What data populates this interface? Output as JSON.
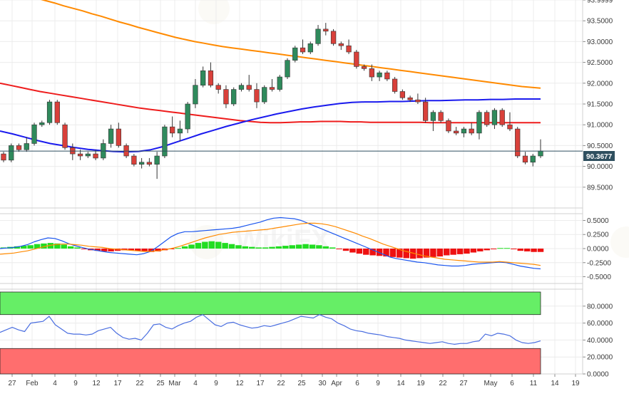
{
  "chart_data": [
    {
      "type": "candlestick",
      "panel": "price",
      "x_ticks": [
        "27",
        "Feb",
        "4",
        "9",
        "12",
        "17",
        "22",
        "25",
        "Mar",
        "4",
        "9",
        "12",
        "17",
        "22",
        "25",
        "30",
        "Apr",
        "6",
        "9",
        "14",
        "19",
        "22",
        "27",
        "May",
        "6",
        "11",
        "14",
        "19"
      ],
      "y_ticks": [
        "89.5000",
        "90.0000",
        "90.5000",
        "91.0000",
        "91.5000",
        "92.0000",
        "92.5000",
        "93.0000",
        "93.5000",
        "93.9999"
      ],
      "last_price_label": "90.3677",
      "ylim": [
        89.0,
        94.0
      ],
      "candles": [
        [
          90.3,
          90.35,
          90.1,
          90.15
        ],
        [
          90.15,
          90.55,
          90.1,
          90.5
        ],
        [
          90.5,
          90.55,
          90.35,
          90.4
        ],
        [
          90.4,
          90.7,
          90.35,
          90.55
        ],
        [
          90.55,
          91.05,
          90.5,
          91.0
        ],
        [
          91.0,
          91.1,
          90.95,
          91.05
        ],
        [
          91.05,
          91.6,
          91.0,
          91.55
        ],
        [
          91.55,
          91.6,
          91.0,
          91.05
        ],
        [
          91.0,
          91.05,
          90.4,
          90.45
        ],
        [
          90.45,
          90.55,
          90.15,
          90.3
        ],
        [
          90.3,
          90.4,
          90.15,
          90.25
        ],
        [
          90.25,
          90.35,
          90.2,
          90.3
        ],
        [
          90.3,
          90.4,
          90.15,
          90.2
        ],
        [
          90.2,
          90.65,
          90.15,
          90.55
        ],
        [
          90.55,
          91.0,
          90.45,
          90.9
        ],
        [
          90.9,
          91.05,
          90.45,
          90.5
        ],
        [
          90.5,
          90.55,
          90.2,
          90.25
        ],
        [
          90.25,
          90.3,
          90.0,
          90.05
        ],
        [
          90.05,
          90.2,
          89.95,
          90.1
        ],
        [
          90.1,
          90.2,
          90.0,
          90.05
        ],
        [
          90.05,
          90.35,
          89.7,
          90.25
        ],
        [
          90.25,
          91.0,
          90.2,
          90.95
        ],
        [
          90.95,
          91.2,
          90.7,
          90.8
        ],
        [
          90.8,
          91.1,
          90.6,
          90.9
        ],
        [
          90.9,
          91.55,
          90.8,
          91.5
        ],
        [
          91.5,
          92.1,
          91.4,
          91.95
        ],
        [
          91.95,
          92.4,
          91.9,
          92.3
        ],
        [
          92.3,
          92.5,
          91.9,
          91.95
        ],
        [
          91.95,
          92.0,
          91.75,
          91.85
        ],
        [
          91.85,
          91.95,
          91.4,
          91.5
        ],
        [
          91.5,
          91.9,
          91.45,
          91.85
        ],
        [
          91.85,
          92.0,
          91.8,
          91.95
        ],
        [
          91.95,
          92.2,
          91.8,
          91.85
        ],
        [
          91.85,
          92.0,
          91.4,
          91.55
        ],
        [
          91.55,
          91.95,
          91.5,
          91.9
        ],
        [
          91.9,
          92.1,
          91.8,
          91.85
        ],
        [
          91.85,
          92.2,
          91.8,
          92.15
        ],
        [
          92.15,
          92.6,
          92.1,
          92.55
        ],
        [
          92.55,
          92.9,
          92.5,
          92.85
        ],
        [
          92.85,
          93.05,
          92.7,
          92.75
        ],
        [
          92.75,
          93.0,
          92.7,
          92.95
        ],
        [
          92.95,
          93.4,
          92.9,
          93.3
        ],
        [
          93.3,
          93.45,
          93.15,
          93.25
        ],
        [
          93.25,
          93.3,
          92.9,
          92.95
        ],
        [
          92.95,
          93.0,
          92.8,
          92.9
        ],
        [
          92.9,
          93.05,
          92.7,
          92.75
        ],
        [
          92.75,
          92.8,
          92.35,
          92.4
        ],
        [
          92.4,
          92.45,
          92.3,
          92.35
        ],
        [
          92.35,
          92.45,
          92.05,
          92.15
        ],
        [
          92.15,
          92.3,
          92.05,
          92.25
        ],
        [
          92.25,
          92.3,
          92.05,
          92.1
        ],
        [
          92.1,
          92.15,
          91.75,
          91.8
        ],
        [
          91.8,
          91.85,
          91.6,
          91.65
        ],
        [
          91.65,
          91.7,
          91.55,
          91.6
        ],
        [
          91.6,
          91.75,
          91.5,
          91.55
        ],
        [
          91.55,
          91.65,
          91.05,
          91.1
        ],
        [
          91.1,
          91.35,
          90.85,
          91.3
        ],
        [
          91.3,
          91.35,
          91.05,
          91.1
        ],
        [
          91.1,
          91.15,
          90.8,
          90.85
        ],
        [
          90.85,
          90.95,
          90.75,
          90.8
        ],
        [
          90.8,
          90.95,
          90.7,
          90.9
        ],
        [
          90.9,
          91.05,
          90.75,
          90.8
        ],
        [
          90.8,
          91.35,
          90.65,
          91.3
        ],
        [
          91.3,
          91.35,
          90.95,
          91.0
        ],
        [
          91.0,
          91.4,
          90.9,
          91.35
        ],
        [
          91.35,
          91.4,
          90.95,
          91.0
        ],
        [
          91.0,
          91.3,
          90.85,
          90.9
        ],
        [
          90.9,
          90.95,
          90.2,
          90.25
        ],
        [
          90.25,
          90.35,
          90.05,
          90.1
        ],
        [
          90.1,
          90.3,
          90.0,
          90.25
        ],
        [
          90.25,
          90.65,
          90.2,
          90.37
        ]
      ],
      "series": [
        {
          "color": "#ff8a00",
          "values": [
            94.05,
            93.99,
            93.93,
            93.86,
            93.8,
            93.74,
            93.67,
            93.61,
            93.54,
            93.47,
            93.41,
            93.34,
            93.28,
            93.22,
            93.16,
            93.1,
            93.05,
            93.0,
            92.96,
            92.92,
            92.88,
            92.85,
            92.82,
            92.79,
            92.76,
            92.73,
            92.7,
            92.67,
            92.64,
            92.61,
            92.58,
            92.55,
            92.52,
            92.49,
            92.46,
            92.43,
            92.4,
            92.37,
            92.34,
            92.31,
            92.28,
            92.25,
            92.22,
            92.19,
            92.16,
            92.13,
            92.1,
            92.07,
            92.04,
            92.01,
            91.98,
            91.95,
            91.92,
            91.9,
            91.88
          ]
        },
        {
          "color": "#ee1c1c",
          "values": [
            92.0,
            91.95,
            91.9,
            91.85,
            91.8,
            91.76,
            91.72,
            91.68,
            91.64,
            91.6,
            91.56,
            91.52,
            91.48,
            91.44,
            91.4,
            91.37,
            91.34,
            91.31,
            91.28,
            91.25,
            91.22,
            91.19,
            91.16,
            91.13,
            91.1,
            91.08,
            91.06,
            91.05,
            91.05,
            91.06,
            91.07,
            91.07,
            91.08,
            91.08,
            91.08,
            91.07,
            91.07,
            91.06,
            91.06,
            91.06,
            91.06,
            91.06,
            91.06,
            91.05,
            91.05,
            91.05,
            91.05,
            91.05,
            91.05,
            91.05,
            91.05,
            91.05,
            91.05,
            91.05,
            91.05
          ]
        },
        {
          "color": "#1a1aee",
          "values": [
            90.85,
            90.78,
            90.7,
            90.62,
            90.55,
            90.5,
            90.45,
            90.41,
            90.38,
            90.36,
            90.35,
            90.36,
            90.4,
            90.48,
            90.58,
            90.68,
            90.78,
            90.87,
            90.96,
            91.04,
            91.12,
            91.19,
            91.26,
            91.32,
            91.38,
            91.43,
            91.47,
            91.51,
            91.54,
            91.55,
            91.55,
            91.56,
            91.56,
            91.57,
            91.58,
            91.58,
            91.59,
            91.6,
            91.6,
            91.61,
            91.61,
            91.62,
            91.62,
            91.62
          ]
        }
      ]
    },
    {
      "type": "macd",
      "panel": "macd",
      "y_ticks": [
        "0.5000",
        "0.2500",
        "0.0000",
        "-0.2500",
        "-0.5000"
      ],
      "ylim": [
        -0.62,
        0.62
      ],
      "histogram": [
        0.02,
        0.03,
        0.04,
        0.05,
        0.06,
        0.08,
        0.09,
        0.1,
        0.09,
        0.07,
        0.04,
        0.02,
        -0.01,
        -0.03,
        -0.04,
        -0.05,
        -0.05,
        -0.04,
        -0.03,
        -0.03,
        -0.04,
        -0.05,
        -0.06,
        -0.05,
        -0.03,
        -0.01,
        0.01,
        0.04,
        0.07,
        0.1,
        0.12,
        0.13,
        0.12,
        0.1,
        0.08,
        0.06,
        0.04,
        0.03,
        0.02,
        0.02,
        0.03,
        0.04,
        0.05,
        0.06,
        0.07,
        0.08,
        0.07,
        0.06,
        0.04,
        0.02,
        -0.01,
        -0.04,
        -0.07,
        -0.09,
        -0.11,
        -0.12,
        -0.13,
        -0.14,
        -0.15,
        -0.16,
        -0.17,
        -0.18,
        -0.17,
        -0.16,
        -0.15,
        -0.14,
        -0.12,
        -0.11,
        -0.1,
        -0.09,
        -0.07,
        -0.05,
        -0.03,
        -0.01,
        0.01,
        0.01,
        -0.01,
        -0.04,
        -0.05,
        -0.06,
        -0.06
      ],
      "series": [
        {
          "color": "#1a55ee",
          "values": [
            0.0,
            0.01,
            0.02,
            0.04,
            0.07,
            0.12,
            0.16,
            0.19,
            0.18,
            0.14,
            0.09,
            0.05,
            0.02,
            -0.01,
            -0.03,
            -0.05,
            -0.07,
            -0.08,
            -0.09,
            -0.1,
            -0.11,
            -0.09,
            -0.05,
            0.03,
            0.12,
            0.21,
            0.27,
            0.3,
            0.3,
            0.31,
            0.32,
            0.33,
            0.34,
            0.35,
            0.36,
            0.38,
            0.41,
            0.44,
            0.47,
            0.51,
            0.54,
            0.55,
            0.54,
            0.53,
            0.5,
            0.45,
            0.4,
            0.35,
            0.3,
            0.25,
            0.2,
            0.15,
            0.1,
            0.05,
            0.0,
            -0.05,
            -0.1,
            -0.15,
            -0.18,
            -0.2,
            -0.22,
            -0.24,
            -0.25,
            -0.27,
            -0.29,
            -0.3,
            -0.31,
            -0.31,
            -0.3,
            -0.28,
            -0.27,
            -0.26,
            -0.25,
            -0.24,
            -0.25,
            -0.28,
            -0.31,
            -0.33,
            -0.35,
            -0.36
          ]
        },
        {
          "color": "#ff8a00",
          "values": [
            -0.1,
            -0.09,
            -0.08,
            -0.06,
            -0.04,
            -0.01,
            0.02,
            0.05,
            0.07,
            0.08,
            0.08,
            0.07,
            0.06,
            0.04,
            0.03,
            0.02,
            0.0,
            -0.01,
            -0.02,
            -0.03,
            -0.04,
            -0.05,
            -0.05,
            -0.04,
            -0.02,
            0.0,
            0.03,
            0.07,
            0.11,
            0.15,
            0.19,
            0.22,
            0.25,
            0.27,
            0.29,
            0.3,
            0.31,
            0.32,
            0.33,
            0.34,
            0.36,
            0.38,
            0.4,
            0.42,
            0.44,
            0.45,
            0.45,
            0.44,
            0.42,
            0.39,
            0.35,
            0.31,
            0.27,
            0.22,
            0.18,
            0.13,
            0.08,
            0.04,
            0.0,
            -0.04,
            -0.07,
            -0.1,
            -0.13,
            -0.15,
            -0.17,
            -0.19,
            -0.2,
            -0.21,
            -0.22,
            -0.23,
            -0.24,
            -0.24,
            -0.24,
            -0.23,
            -0.24,
            -0.25,
            -0.26,
            -0.27,
            -0.28,
            -0.3
          ]
        }
      ]
    },
    {
      "type": "line",
      "panel": "rsi",
      "y_ticks": [
        "80.0000",
        "60.0000",
        "40.0000",
        "20.0000",
        "0.0000"
      ],
      "ylim": [
        0,
        100
      ],
      "overbought": 70,
      "oversold": 30,
      "overbought_color": "#66ee66",
      "oversold_color": "#ff6e6e",
      "series": [
        {
          "color": "#4a6ee0",
          "values": [
            49,
            52,
            55,
            52,
            50,
            60,
            61,
            62,
            68,
            58,
            53,
            48,
            47,
            47,
            46,
            47,
            51,
            53,
            55,
            48,
            43,
            41,
            42,
            40,
            48,
            58,
            59,
            55,
            53,
            57,
            60,
            62,
            67,
            70,
            64,
            58,
            56,
            60,
            61,
            58,
            56,
            54,
            55,
            57,
            56,
            58,
            60,
            62,
            65,
            68,
            67,
            66,
            70,
            67,
            65,
            60,
            57,
            53,
            51,
            50,
            48,
            47,
            46,
            44,
            43,
            42,
            40,
            39,
            38,
            37,
            36,
            37,
            38,
            36,
            35,
            36,
            36,
            38,
            39,
            47,
            45,
            48,
            47,
            45,
            40,
            37,
            36,
            37,
            39
          ]
        }
      ]
    }
  ]
}
